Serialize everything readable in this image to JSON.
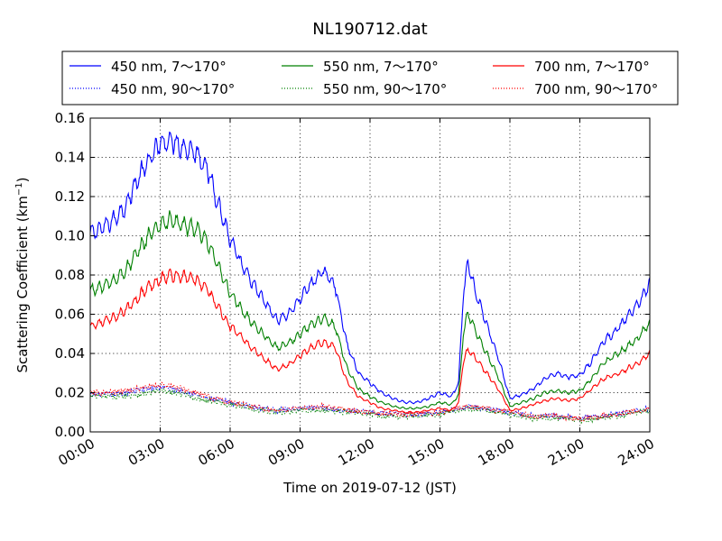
{
  "chart_data": {
    "type": "line",
    "title": "NL190712.dat",
    "xlabel": "Time on 2019-07-12 (JST)",
    "ylabel_main": "Scattering Coefficient (km",
    "ylabel_sup": "−1",
    "ylabel_end": ")",
    "x_unit": "hours",
    "xlim": [
      0,
      24
    ],
    "ylim": [
      0,
      0.16
    ],
    "x_ticks": [
      {
        "value": 0,
        "label": "00:00"
      },
      {
        "value": 3,
        "label": "03:00"
      },
      {
        "value": 6,
        "label": "06:00"
      },
      {
        "value": 9,
        "label": "09:00"
      },
      {
        "value": 12,
        "label": "12:00"
      },
      {
        "value": 15,
        "label": "15:00"
      },
      {
        "value": 18,
        "label": "18:00"
      },
      {
        "value": 21,
        "label": "21:00"
      },
      {
        "value": 24,
        "label": "24:00"
      }
    ],
    "y_ticks": [
      {
        "value": 0,
        "label": "0.00"
      },
      {
        "value": 0.02,
        "label": "0.02"
      },
      {
        "value": 0.04,
        "label": "0.04"
      },
      {
        "value": 0.06,
        "label": "0.06"
      },
      {
        "value": 0.08,
        "label": "0.08"
      },
      {
        "value": 0.1,
        "label": "0.10"
      },
      {
        "value": 0.12,
        "label": "0.12"
      },
      {
        "value": 0.14,
        "label": "0.14"
      },
      {
        "value": 0.16,
        "label": "0.16"
      }
    ],
    "grid": true,
    "legend_position": "top",
    "series": [
      {
        "name": "450 nm, 7～170°",
        "color": "#0000ff",
        "style": "solid",
        "x": [
          0,
          0.5,
          1,
          1.5,
          2,
          2.5,
          3,
          3.5,
          4,
          4.5,
          5,
          5.5,
          6,
          6.5,
          7,
          7.5,
          8,
          8.5,
          9,
          9.5,
          10,
          10.5,
          11,
          11.5,
          12,
          12.5,
          13,
          13.5,
          14,
          14.5,
          15,
          15.5,
          15.8,
          16,
          16.2,
          16.5,
          17,
          17.5,
          18,
          18.5,
          19,
          19.5,
          20,
          20.5,
          21,
          21.5,
          22,
          22.5,
          23,
          23.5,
          24
        ],
        "y": [
          0.101,
          0.104,
          0.108,
          0.115,
          0.128,
          0.138,
          0.147,
          0.149,
          0.145,
          0.143,
          0.135,
          0.116,
          0.098,
          0.085,
          0.075,
          0.066,
          0.057,
          0.06,
          0.068,
          0.076,
          0.082,
          0.075,
          0.045,
          0.03,
          0.025,
          0.02,
          0.017,
          0.015,
          0.015,
          0.017,
          0.02,
          0.018,
          0.025,
          0.07,
          0.086,
          0.072,
          0.055,
          0.038,
          0.017,
          0.019,
          0.022,
          0.027,
          0.03,
          0.028,
          0.029,
          0.036,
          0.046,
          0.051,
          0.058,
          0.065,
          0.076
        ]
      },
      {
        "name": "450 nm, 90～170°",
        "color": "#0000ff",
        "style": "dotted",
        "x": [
          0,
          1,
          2,
          3,
          4,
          5,
          6,
          7,
          8,
          9,
          10,
          11,
          12,
          13,
          14,
          15,
          16,
          17,
          18,
          19,
          20,
          21,
          22,
          23,
          24
        ],
        "y": [
          0.019,
          0.019,
          0.021,
          0.023,
          0.021,
          0.017,
          0.015,
          0.013,
          0.011,
          0.012,
          0.012,
          0.011,
          0.01,
          0.009,
          0.009,
          0.01,
          0.013,
          0.012,
          0.01,
          0.008,
          0.008,
          0.007,
          0.008,
          0.01,
          0.012
        ]
      },
      {
        "name": "550 nm, 7～170°",
        "color": "#008000",
        "style": "solid",
        "x": [
          0,
          0.5,
          1,
          1.5,
          2,
          2.5,
          3,
          3.5,
          4,
          4.5,
          5,
          5.5,
          6,
          6.5,
          7,
          7.5,
          8,
          8.5,
          9,
          9.5,
          10,
          10.5,
          11,
          11.5,
          12,
          12.5,
          13,
          13.5,
          14,
          14.5,
          15,
          15.5,
          15.8,
          16,
          16.2,
          16.5,
          17,
          17.5,
          18,
          18.5,
          19,
          19.5,
          20,
          20.5,
          21,
          21.5,
          22,
          22.5,
          23,
          23.5,
          24
        ],
        "y": [
          0.072,
          0.074,
          0.077,
          0.082,
          0.091,
          0.1,
          0.106,
          0.108,
          0.105,
          0.104,
          0.097,
          0.084,
          0.071,
          0.062,
          0.055,
          0.049,
          0.043,
          0.045,
          0.05,
          0.055,
          0.058,
          0.054,
          0.033,
          0.022,
          0.018,
          0.015,
          0.013,
          0.012,
          0.012,
          0.013,
          0.015,
          0.014,
          0.019,
          0.05,
          0.061,
          0.052,
          0.04,
          0.028,
          0.013,
          0.015,
          0.017,
          0.02,
          0.021,
          0.02,
          0.021,
          0.027,
          0.035,
          0.039,
          0.043,
          0.048,
          0.056
        ]
      },
      {
        "name": "550 nm, 90～170°",
        "color": "#008000",
        "style": "dotted",
        "x": [
          0,
          1,
          2,
          3,
          4,
          5,
          6,
          7,
          8,
          9,
          10,
          11,
          12,
          13,
          14,
          15,
          16,
          17,
          18,
          19,
          20,
          21,
          22,
          23,
          24
        ],
        "y": [
          0.018,
          0.018,
          0.019,
          0.021,
          0.019,
          0.016,
          0.014,
          0.012,
          0.01,
          0.011,
          0.011,
          0.01,
          0.009,
          0.008,
          0.008,
          0.009,
          0.012,
          0.011,
          0.009,
          0.007,
          0.007,
          0.006,
          0.007,
          0.009,
          0.011
        ]
      },
      {
        "name": "700 nm, 7～170°",
        "color": "#ff0000",
        "style": "solid",
        "x": [
          0,
          0.5,
          1,
          1.5,
          2,
          2.5,
          3,
          3.5,
          4,
          4.5,
          5,
          5.5,
          6,
          6.5,
          7,
          7.5,
          8,
          8.5,
          9,
          9.5,
          10,
          10.5,
          11,
          11.5,
          12,
          12.5,
          13,
          13.5,
          14,
          14.5,
          15,
          15.5,
          15.8,
          16,
          16.2,
          16.5,
          17,
          17.5,
          18,
          18.5,
          19,
          19.5,
          20,
          20.5,
          21,
          21.5,
          22,
          22.5,
          23,
          23.5,
          24
        ],
        "y": [
          0.054,
          0.056,
          0.058,
          0.062,
          0.068,
          0.074,
          0.078,
          0.08,
          0.079,
          0.078,
          0.073,
          0.063,
          0.054,
          0.048,
          0.042,
          0.037,
          0.032,
          0.034,
          0.039,
          0.043,
          0.046,
          0.043,
          0.026,
          0.018,
          0.015,
          0.012,
          0.011,
          0.01,
          0.01,
          0.011,
          0.012,
          0.011,
          0.015,
          0.036,
          0.042,
          0.038,
          0.03,
          0.022,
          0.011,
          0.012,
          0.014,
          0.016,
          0.017,
          0.016,
          0.017,
          0.022,
          0.027,
          0.029,
          0.032,
          0.035,
          0.04
        ]
      },
      {
        "name": "700 nm, 90～170°",
        "color": "#ff0000",
        "style": "dotted",
        "x": [
          0,
          1,
          2,
          3,
          4,
          5,
          6,
          7,
          8,
          9,
          10,
          11,
          12,
          13,
          14,
          15,
          16,
          17,
          18,
          19,
          20,
          21,
          22,
          23,
          24
        ],
        "y": [
          0.02,
          0.02,
          0.022,
          0.024,
          0.022,
          0.018,
          0.015,
          0.013,
          0.011,
          0.012,
          0.013,
          0.011,
          0.01,
          0.009,
          0.009,
          0.01,
          0.013,
          0.012,
          0.01,
          0.008,
          0.008,
          0.007,
          0.008,
          0.01,
          0.012
        ]
      }
    ]
  }
}
